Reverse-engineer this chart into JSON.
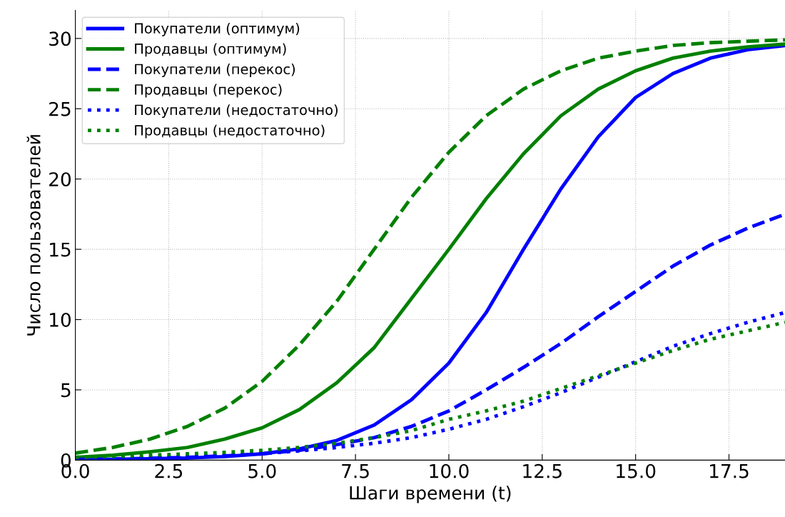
{
  "chart_data": {
    "type": "line",
    "xlabel": "Шаги времени (t)",
    "ylabel": "Число пользователей",
    "x": [
      0,
      1,
      2,
      3,
      4,
      5,
      6,
      7,
      8,
      9,
      10,
      11,
      12,
      13,
      14,
      15,
      16,
      17,
      18,
      19
    ],
    "xlim": [
      0,
      19
    ],
    "ylim": [
      0,
      32
    ],
    "xticks": [
      {
        "value": 0,
        "label": "0.0"
      },
      2.5,
      {
        "value": 5,
        "label": "5.0"
      },
      7.5,
      {
        "value": 10,
        "label": "10.0"
      },
      12.5,
      {
        "value": 15,
        "label": "15.0"
      },
      17.5
    ],
    "yticks": [
      0,
      5,
      10,
      15,
      20,
      25,
      30
    ],
    "grid": true,
    "legend": "top left",
    "series": [
      {
        "name": "Покупатели (оптимум)",
        "color": "#0000ff",
        "line_style": "solid",
        "values": [
          0.03,
          0.06,
          0.1,
          0.15,
          0.25,
          0.45,
          0.8,
          1.4,
          2.5,
          4.3,
          6.9,
          10.5,
          15.0,
          19.3,
          23.0,
          25.8,
          27.5,
          28.6,
          29.2,
          29.5
        ]
      },
      {
        "name": "Продавцы (оптимум)",
        "color": "#008000",
        "line_style": "solid",
        "values": [
          0.2,
          0.35,
          0.6,
          0.9,
          1.5,
          2.3,
          3.6,
          5.5,
          8.0,
          11.5,
          15.0,
          18.6,
          21.8,
          24.5,
          26.4,
          27.7,
          28.6,
          29.1,
          29.4,
          29.6
        ]
      },
      {
        "name": "Покупатели (перекос)",
        "color": "#0000ff",
        "line_style": "dashed",
        "values": [
          0.05,
          0.08,
          0.13,
          0.2,
          0.3,
          0.45,
          0.7,
          1.1,
          1.6,
          2.4,
          3.5,
          5.0,
          6.6,
          8.3,
          10.2,
          12.0,
          13.8,
          15.3,
          16.5,
          17.5
        ]
      },
      {
        "name": "Продавцы (перекос)",
        "color": "#008000",
        "line_style": "dashed",
        "values": [
          0.5,
          0.9,
          1.5,
          2.4,
          3.7,
          5.6,
          8.2,
          11.3,
          15.0,
          18.7,
          21.9,
          24.5,
          26.4,
          27.7,
          28.6,
          29.1,
          29.5,
          29.7,
          29.8,
          29.9
        ]
      },
      {
        "name": "Покупатели (недостаточно)",
        "color": "#0000ff",
        "line_style": "dotted",
        "values": [
          0.1,
          0.13,
          0.18,
          0.25,
          0.35,
          0.48,
          0.65,
          0.9,
          1.2,
          1.6,
          2.2,
          2.9,
          3.8,
          4.8,
          5.9,
          7.0,
          8.1,
          9.0,
          9.8,
          10.5
        ]
      },
      {
        "name": "Продавцы (недостаточно)",
        "color": "#008000",
        "line_style": "dotted",
        "values": [
          0.2,
          0.27,
          0.35,
          0.45,
          0.55,
          0.7,
          0.9,
          1.2,
          1.6,
          2.1,
          2.9,
          3.5,
          4.2,
          5.1,
          6.0,
          6.9,
          7.8,
          8.6,
          9.2,
          9.8
        ]
      }
    ]
  }
}
